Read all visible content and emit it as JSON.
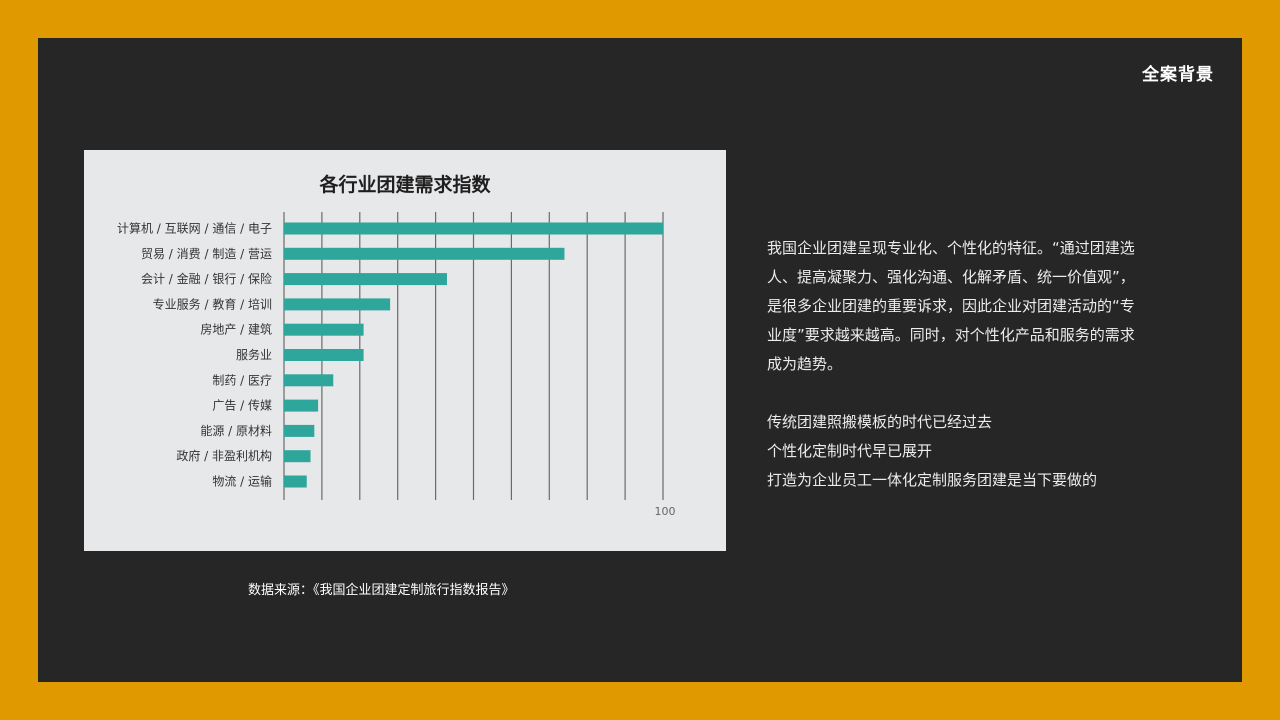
{
  "header": {
    "title": "全案背景"
  },
  "chart_data": {
    "type": "bar",
    "orientation": "horizontal",
    "title": "各行业团建需求指数",
    "categories": [
      "计算机 / 互联网 / 通信 / 电子",
      "贸易 / 消费 / 制造 / 营运",
      "会计 / 金融 / 银行 / 保险",
      "专业服务 / 教育 / 培训",
      "房地产 / 建筑",
      "服务业",
      "制药 / 医疗",
      "广告 / 传媒",
      "能源 / 原材料",
      "政府 / 非盈利机构",
      "物流 / 运输"
    ],
    "values": [
      100,
      74,
      43,
      28,
      21,
      21,
      13,
      9,
      8,
      7,
      6
    ],
    "x_tick_label": "100",
    "xlim": [
      0,
      100
    ],
    "grid": true,
    "bar_color": "#2ea69c"
  },
  "source": {
    "text": "数据来源：《我国企业团建定制旅行指数报告》"
  },
  "description": {
    "paragraph1": "我国企业团建呈现专业化、个性化的特征。“通过团建选人、提高凝聚力、强化沟通、化解矛盾、统一价值观”，是很多企业团建的重要诉求，因此企业对团建活动的“专业度”要求越来越高。同时，对个性化产品和服务的需求成为趋势。",
    "lines": [
      "传统团建照搬模板的时代已经过去",
      "个性化定制时代早已展开",
      "打造为企业员工一体化定制服务团建是当下要做的"
    ]
  }
}
